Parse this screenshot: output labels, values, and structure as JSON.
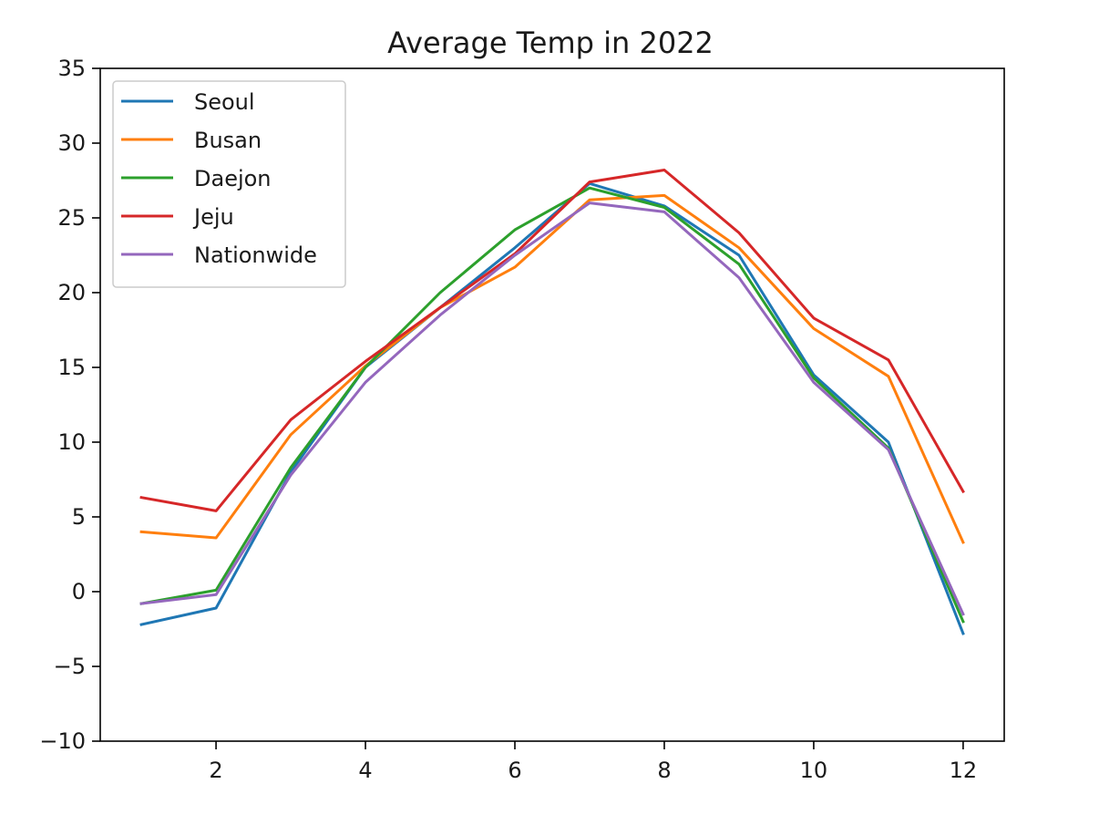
{
  "chart_data": {
    "type": "line",
    "title": "Average Temp in 2022",
    "xlabel": "",
    "ylabel": "",
    "x": [
      1,
      2,
      3,
      4,
      5,
      6,
      7,
      8,
      9,
      10,
      11,
      12
    ],
    "xlim": [
      0.45,
      12.55
    ],
    "ylim": [
      -10,
      35
    ],
    "xticks": [
      2,
      4,
      6,
      8,
      10,
      12
    ],
    "xtick_labels": [
      "2",
      "4",
      "6",
      "8",
      "10",
      "12"
    ],
    "yticks": [
      -10,
      -5,
      0,
      5,
      10,
      15,
      20,
      25,
      30,
      35
    ],
    "ytick_labels": [
      "−10",
      "−5",
      "0",
      "5",
      "10",
      "15",
      "20",
      "25",
      "30",
      "35"
    ],
    "grid": false,
    "legend_position": "top-left",
    "series": [
      {
        "name": "Seoul",
        "color": "#1f77b4",
        "values": [
          -2.2,
          -1.1,
          8.0,
          15.0,
          19.0,
          23.0,
          27.3,
          25.8,
          22.5,
          14.5,
          10.0,
          -2.8
        ]
      },
      {
        "name": "Busan",
        "color": "#ff7f0e",
        "values": [
          4.0,
          3.6,
          10.5,
          15.1,
          19.0,
          21.7,
          26.2,
          26.5,
          23.0,
          17.6,
          14.4,
          3.3
        ]
      },
      {
        "name": "Daejon",
        "color": "#2ca02c",
        "values": [
          -0.8,
          0.1,
          8.3,
          15.0,
          20.0,
          24.2,
          27.0,
          25.7,
          21.9,
          14.3,
          9.6,
          -2.0
        ]
      },
      {
        "name": "Jeju",
        "color": "#d62728",
        "values": [
          6.3,
          5.4,
          11.5,
          15.4,
          19.0,
          22.6,
          27.4,
          28.2,
          24.0,
          18.3,
          15.5,
          6.7
        ]
      },
      {
        "name": "Nationwide",
        "color": "#9467bd",
        "values": [
          -0.8,
          -0.2,
          7.8,
          14.0,
          18.5,
          22.5,
          26.0,
          25.4,
          21.0,
          14.0,
          9.5,
          -1.5
        ]
      }
    ]
  }
}
